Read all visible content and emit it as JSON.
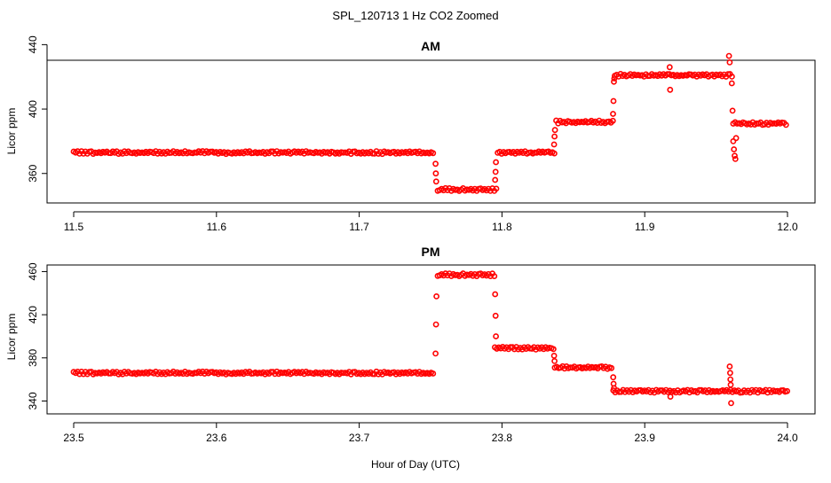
{
  "chart_data": {
    "type": "scatter",
    "title": "SPL_120713  1 Hz CO2 Zoomed",
    "xlabel": "Hour of Day (UTC)",
    "point_color": "#ff0000",
    "panels": [
      {
        "name": "AM",
        "title": "AM",
        "ylabel": "Licor ppm",
        "xlim": [
          11.5,
          12.0
        ],
        "ylim": [
          345,
          427
        ],
        "xticks": [
          "11.5",
          "11.6",
          "11.7",
          "11.8",
          "11.9",
          "12.0"
        ],
        "yticks": [
          "360",
          "400",
          "440"
        ],
        "segments": [
          {
            "x0": 11.5,
            "x1": 11.753,
            "y": 373
          },
          {
            "x0": 11.755,
            "x1": 11.797,
            "y": 350
          },
          {
            "x0": 11.797,
            "x1": 11.838,
            "y": 373
          },
          {
            "x0": 11.838,
            "x1": 11.878,
            "y": 392
          },
          {
            "x0": 11.879,
            "x1": 11.962,
            "y": 421
          },
          {
            "x0": 11.962,
            "x1": 12.0,
            "y": 391
          }
        ],
        "transitions": [
          {
            "x": 11.7535,
            "y": 366
          },
          {
            "x": 11.7537,
            "y": 360
          },
          {
            "x": 11.7539,
            "y": 355
          },
          {
            "x": 11.7952,
            "y": 356
          },
          {
            "x": 11.7955,
            "y": 361
          },
          {
            "x": 11.7958,
            "y": 367
          },
          {
            "x": 11.8365,
            "y": 378
          },
          {
            "x": 11.8368,
            "y": 383
          },
          {
            "x": 11.8371,
            "y": 387
          },
          {
            "x": 11.8778,
            "y": 397
          },
          {
            "x": 11.8781,
            "y": 405
          },
          {
            "x": 11.8784,
            "y": 417
          },
          {
            "x": 11.8787,
            "y": 419
          },
          {
            "x": 11.9175,
            "y": 426
          },
          {
            "x": 11.9178,
            "y": 412
          },
          {
            "x": 11.959,
            "y": 433
          },
          {
            "x": 11.9595,
            "y": 429
          },
          {
            "x": 11.961,
            "y": 416
          },
          {
            "x": 11.9615,
            "y": 399
          },
          {
            "x": 11.962,
            "y": 380
          },
          {
            "x": 11.9625,
            "y": 375
          },
          {
            "x": 11.963,
            "y": 371
          },
          {
            "x": 11.9635,
            "y": 369
          },
          {
            "x": 11.964,
            "y": 382
          }
        ]
      },
      {
        "name": "PM",
        "title": "PM",
        "ylabel": "Licor ppm",
        "xlim": [
          23.5,
          24.0
        ],
        "ylim": [
          333,
          462
        ],
        "xticks": [
          "23.5",
          "23.6",
          "23.7",
          "23.8",
          "23.9",
          "24.0"
        ],
        "yticks": [
          "340",
          "380",
          "420",
          "460"
        ],
        "segments": [
          {
            "x0": 23.5,
            "x1": 23.753,
            "y": 366
          },
          {
            "x0": 23.755,
            "x1": 23.795,
            "y": 457
          },
          {
            "x0": 23.795,
            "x1": 23.837,
            "y": 389
          },
          {
            "x0": 23.837,
            "x1": 23.878,
            "y": 371
          },
          {
            "x0": 23.878,
            "x1": 24.0,
            "y": 349
          }
        ],
        "transitions": [
          {
            "x": 23.7535,
            "y": 384
          },
          {
            "x": 23.7538,
            "y": 411
          },
          {
            "x": 23.7541,
            "y": 437
          },
          {
            "x": 23.7952,
            "y": 439
          },
          {
            "x": 23.7955,
            "y": 419
          },
          {
            "x": 23.7958,
            "y": 400
          },
          {
            "x": 23.8365,
            "y": 382
          },
          {
            "x": 23.8368,
            "y": 377
          },
          {
            "x": 23.8779,
            "y": 362
          },
          {
            "x": 23.8782,
            "y": 356
          },
          {
            "x": 23.8785,
            "y": 352
          },
          {
            "x": 23.918,
            "y": 344
          },
          {
            "x": 23.9595,
            "y": 372
          },
          {
            "x": 23.9598,
            "y": 366
          },
          {
            "x": 23.96,
            "y": 360
          },
          {
            "x": 23.9602,
            "y": 355
          },
          {
            "x": 23.9605,
            "y": 338
          }
        ]
      }
    ]
  }
}
